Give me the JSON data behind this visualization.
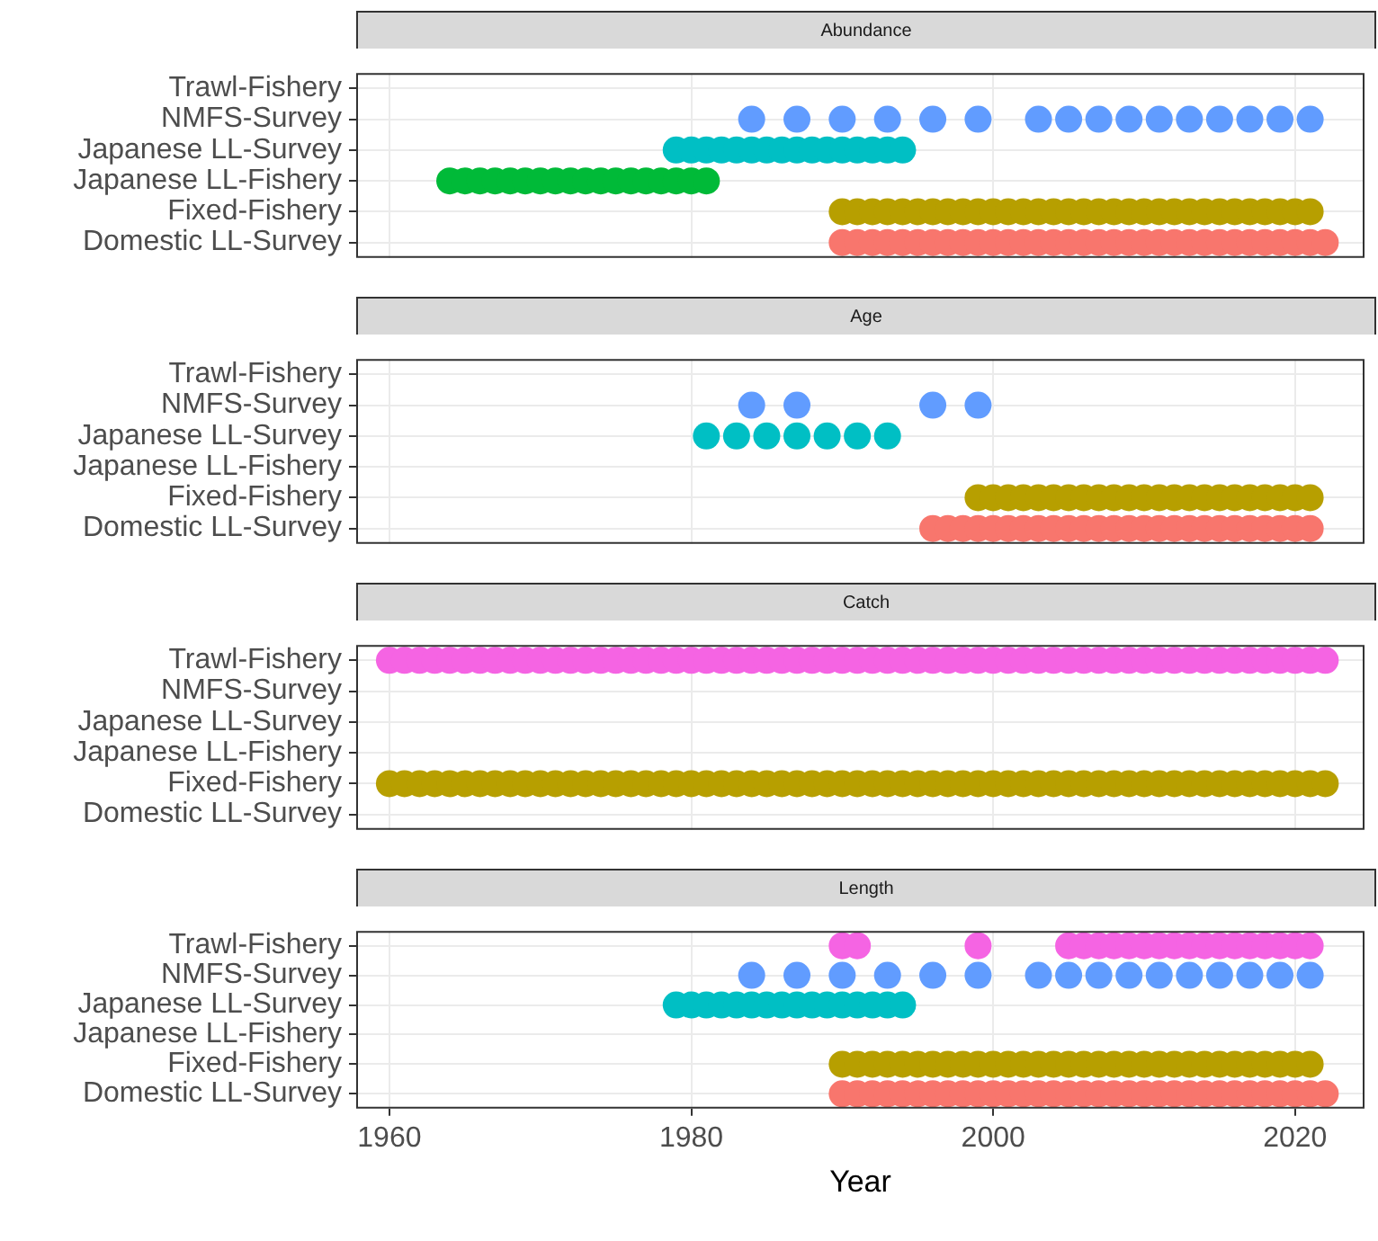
{
  "chart_data": [
    {
      "type": "scatter",
      "orientation": "horizontal",
      "title": "Abundance",
      "categories": [
        "Trawl-Fishery",
        "NMFS-Survey",
        "Japanese LL-Survey",
        "Japanese LL-Fishery",
        "Fixed-Fishery",
        "Domestic LL-Survey"
      ],
      "xlim": [
        1957.8,
        2024.6
      ],
      "xticks": [
        1960,
        1980,
        2000,
        2020
      ],
      "tick_labels": "y",
      "grid": true,
      "marker": "circle",
      "series": [
        {
          "color": "#619cff",
          "values": [
            1984,
            1987,
            1990,
            1993,
            1996,
            1999,
            2003,
            2005,
            2007,
            2009,
            2011,
            2013,
            2015,
            2017,
            2019,
            2021
          ],
          "x": [
            "NMFS-Survey",
            "NMFS-Survey",
            "NMFS-Survey",
            "NMFS-Survey",
            "NMFS-Survey",
            "NMFS-Survey",
            "NMFS-Survey",
            "NMFS-Survey",
            "NMFS-Survey",
            "NMFS-Survey",
            "NMFS-Survey",
            "NMFS-Survey",
            "NMFS-Survey",
            "NMFS-Survey",
            "NMFS-Survey",
            "NMFS-Survey"
          ]
        },
        {
          "color": "#00bfc4",
          "values": [
            1979,
            1980,
            1981,
            1982,
            1983,
            1984,
            1985,
            1986,
            1987,
            1988,
            1989,
            1990,
            1991,
            1992,
            1993,
            1994
          ],
          "x": [
            "Japanese LL-Survey",
            "Japanese LL-Survey",
            "Japanese LL-Survey",
            "Japanese LL-Survey",
            "Japanese LL-Survey",
            "Japanese LL-Survey",
            "Japanese LL-Survey",
            "Japanese LL-Survey",
            "Japanese LL-Survey",
            "Japanese LL-Survey",
            "Japanese LL-Survey",
            "Japanese LL-Survey",
            "Japanese LL-Survey",
            "Japanese LL-Survey",
            "Japanese LL-Survey",
            "Japanese LL-Survey"
          ]
        },
        {
          "color": "#00ba38",
          "values": [
            1964,
            1965,
            1966,
            1967,
            1968,
            1969,
            1970,
            1971,
            1972,
            1973,
            1974,
            1975,
            1976,
            1977,
            1978,
            1979,
            1980,
            1981
          ],
          "x": [
            "Japanese LL-Fishery",
            "Japanese LL-Fishery",
            "Japanese LL-Fishery",
            "Japanese LL-Fishery",
            "Japanese LL-Fishery",
            "Japanese LL-Fishery",
            "Japanese LL-Fishery",
            "Japanese LL-Fishery",
            "Japanese LL-Fishery",
            "Japanese LL-Fishery",
            "Japanese LL-Fishery",
            "Japanese LL-Fishery",
            "Japanese LL-Fishery",
            "Japanese LL-Fishery",
            "Japanese LL-Fishery",
            "Japanese LL-Fishery",
            "Japanese LL-Fishery",
            "Japanese LL-Fishery"
          ]
        },
        {
          "color": "#b79f00",
          "values": [
            1990,
            1991,
            1992,
            1993,
            1994,
            1995,
            1996,
            1997,
            1998,
            1999,
            2000,
            2001,
            2002,
            2003,
            2004,
            2005,
            2006,
            2007,
            2008,
            2009,
            2010,
            2011,
            2012,
            2013,
            2014,
            2015,
            2016,
            2017,
            2018,
            2019,
            2020,
            2021
          ],
          "x": [
            "Fixed-Fishery",
            "Fixed-Fishery",
            "Fixed-Fishery",
            "Fixed-Fishery",
            "Fixed-Fishery",
            "Fixed-Fishery",
            "Fixed-Fishery",
            "Fixed-Fishery",
            "Fixed-Fishery",
            "Fixed-Fishery",
            "Fixed-Fishery",
            "Fixed-Fishery",
            "Fixed-Fishery",
            "Fixed-Fishery",
            "Fixed-Fishery",
            "Fixed-Fishery",
            "Fixed-Fishery",
            "Fixed-Fishery",
            "Fixed-Fishery",
            "Fixed-Fishery",
            "Fixed-Fishery",
            "Fixed-Fishery",
            "Fixed-Fishery",
            "Fixed-Fishery",
            "Fixed-Fishery",
            "Fixed-Fishery",
            "Fixed-Fishery",
            "Fixed-Fishery",
            "Fixed-Fishery",
            "Fixed-Fishery",
            "Fixed-Fishery",
            "Fixed-Fishery"
          ]
        },
        {
          "color": "#f8766d",
          "values": [
            1990,
            1991,
            1992,
            1993,
            1994,
            1995,
            1996,
            1997,
            1998,
            1999,
            2000,
            2001,
            2002,
            2003,
            2004,
            2005,
            2006,
            2007,
            2008,
            2009,
            2010,
            2011,
            2012,
            2013,
            2014,
            2015,
            2016,
            2017,
            2018,
            2019,
            2020,
            2021,
            2022
          ],
          "x": [
            "Domestic LL-Survey",
            "Domestic LL-Survey",
            "Domestic LL-Survey",
            "Domestic LL-Survey",
            "Domestic LL-Survey",
            "Domestic LL-Survey",
            "Domestic LL-Survey",
            "Domestic LL-Survey",
            "Domestic LL-Survey",
            "Domestic LL-Survey",
            "Domestic LL-Survey",
            "Domestic LL-Survey",
            "Domestic LL-Survey",
            "Domestic LL-Survey",
            "Domestic LL-Survey",
            "Domestic LL-Survey",
            "Domestic LL-Survey",
            "Domestic LL-Survey",
            "Domestic LL-Survey",
            "Domestic LL-Survey",
            "Domestic LL-Survey",
            "Domestic LL-Survey",
            "Domestic LL-Survey",
            "Domestic LL-Survey",
            "Domestic LL-Survey",
            "Domestic LL-Survey",
            "Domestic LL-Survey",
            "Domestic LL-Survey",
            "Domestic LL-Survey",
            "Domestic LL-Survey",
            "Domestic LL-Survey",
            "Domestic LL-Survey",
            "Domestic LL-Survey"
          ]
        }
      ]
    },
    {
      "type": "scatter",
      "orientation": "horizontal",
      "title": "Age",
      "categories": [
        "Trawl-Fishery",
        "NMFS-Survey",
        "Japanese LL-Survey",
        "Japanese LL-Fishery",
        "Fixed-Fishery",
        "Domestic LL-Survey"
      ],
      "xlim": [
        1957.8,
        2024.6
      ],
      "xticks": [
        1960,
        1980,
        2000,
        2020
      ],
      "tick_labels": "y",
      "grid": true,
      "marker": "circle",
      "series": [
        {
          "color": "#619cff",
          "values": [
            1984,
            1987,
            1996,
            1999
          ],
          "x": [
            "NMFS-Survey",
            "NMFS-Survey",
            "NMFS-Survey",
            "NMFS-Survey"
          ]
        },
        {
          "color": "#00bfc4",
          "values": [
            1981,
            1983,
            1985,
            1987,
            1989,
            1991,
            1993
          ],
          "x": [
            "Japanese LL-Survey",
            "Japanese LL-Survey",
            "Japanese LL-Survey",
            "Japanese LL-Survey",
            "Japanese LL-Survey",
            "Japanese LL-Survey",
            "Japanese LL-Survey"
          ]
        },
        {
          "color": "#b79f00",
          "values": [
            1999,
            2000,
            2001,
            2002,
            2003,
            2004,
            2005,
            2006,
            2007,
            2008,
            2009,
            2010,
            2011,
            2012,
            2013,
            2014,
            2015,
            2016,
            2017,
            2018,
            2019,
            2020,
            2021
          ],
          "x": [
            "Fixed-Fishery",
            "Fixed-Fishery",
            "Fixed-Fishery",
            "Fixed-Fishery",
            "Fixed-Fishery",
            "Fixed-Fishery",
            "Fixed-Fishery",
            "Fixed-Fishery",
            "Fixed-Fishery",
            "Fixed-Fishery",
            "Fixed-Fishery",
            "Fixed-Fishery",
            "Fixed-Fishery",
            "Fixed-Fishery",
            "Fixed-Fishery",
            "Fixed-Fishery",
            "Fixed-Fishery",
            "Fixed-Fishery",
            "Fixed-Fishery",
            "Fixed-Fishery",
            "Fixed-Fishery",
            "Fixed-Fishery",
            "Fixed-Fishery"
          ]
        },
        {
          "color": "#f8766d",
          "values": [
            1996,
            1997,
            1998,
            1999,
            2000,
            2001,
            2002,
            2003,
            2004,
            2005,
            2006,
            2007,
            2008,
            2009,
            2010,
            2011,
            2012,
            2013,
            2014,
            2015,
            2016,
            2017,
            2018,
            2019,
            2020,
            2021
          ],
          "x": [
            "Domestic LL-Survey",
            "Domestic LL-Survey",
            "Domestic LL-Survey",
            "Domestic LL-Survey",
            "Domestic LL-Survey",
            "Domestic LL-Survey",
            "Domestic LL-Survey",
            "Domestic LL-Survey",
            "Domestic LL-Survey",
            "Domestic LL-Survey",
            "Domestic LL-Survey",
            "Domestic LL-Survey",
            "Domestic LL-Survey",
            "Domestic LL-Survey",
            "Domestic LL-Survey",
            "Domestic LL-Survey",
            "Domestic LL-Survey",
            "Domestic LL-Survey",
            "Domestic LL-Survey",
            "Domestic LL-Survey",
            "Domestic LL-Survey",
            "Domestic LL-Survey",
            "Domestic LL-Survey",
            "Domestic LL-Survey",
            "Domestic LL-Survey",
            "Domestic LL-Survey"
          ]
        }
      ]
    },
    {
      "type": "scatter",
      "orientation": "horizontal",
      "title": "Catch",
      "categories": [
        "Trawl-Fishery",
        "NMFS-Survey",
        "Japanese LL-Survey",
        "Japanese LL-Fishery",
        "Fixed-Fishery",
        "Domestic LL-Survey"
      ],
      "xlim": [
        1957.8,
        2024.6
      ],
      "xticks": [
        1960,
        1980,
        2000,
        2020
      ],
      "tick_labels": "y",
      "grid": true,
      "marker": "circle",
      "series": [
        {
          "color": "#f564e3",
          "values": [
            1960,
            1961,
            1962,
            1963,
            1964,
            1965,
            1966,
            1967,
            1968,
            1969,
            1970,
            1971,
            1972,
            1973,
            1974,
            1975,
            1976,
            1977,
            1978,
            1979,
            1980,
            1981,
            1982,
            1983,
            1984,
            1985,
            1986,
            1987,
            1988,
            1989,
            1990,
            1991,
            1992,
            1993,
            1994,
            1995,
            1996,
            1997,
            1998,
            1999,
            2000,
            2001,
            2002,
            2003,
            2004,
            2005,
            2006,
            2007,
            2008,
            2009,
            2010,
            2011,
            2012,
            2013,
            2014,
            2015,
            2016,
            2017,
            2018,
            2019,
            2020,
            2021,
            2022
          ],
          "x": [
            "Trawl-Fishery",
            "Trawl-Fishery",
            "Trawl-Fishery",
            "Trawl-Fishery",
            "Trawl-Fishery",
            "Trawl-Fishery",
            "Trawl-Fishery",
            "Trawl-Fishery",
            "Trawl-Fishery",
            "Trawl-Fishery",
            "Trawl-Fishery",
            "Trawl-Fishery",
            "Trawl-Fishery",
            "Trawl-Fishery",
            "Trawl-Fishery",
            "Trawl-Fishery",
            "Trawl-Fishery",
            "Trawl-Fishery",
            "Trawl-Fishery",
            "Trawl-Fishery",
            "Trawl-Fishery",
            "Trawl-Fishery",
            "Trawl-Fishery",
            "Trawl-Fishery",
            "Trawl-Fishery",
            "Trawl-Fishery",
            "Trawl-Fishery",
            "Trawl-Fishery",
            "Trawl-Fishery",
            "Trawl-Fishery",
            "Trawl-Fishery",
            "Trawl-Fishery",
            "Trawl-Fishery",
            "Trawl-Fishery",
            "Trawl-Fishery",
            "Trawl-Fishery",
            "Trawl-Fishery",
            "Trawl-Fishery",
            "Trawl-Fishery",
            "Trawl-Fishery",
            "Trawl-Fishery",
            "Trawl-Fishery",
            "Trawl-Fishery",
            "Trawl-Fishery",
            "Trawl-Fishery",
            "Trawl-Fishery",
            "Trawl-Fishery",
            "Trawl-Fishery",
            "Trawl-Fishery",
            "Trawl-Fishery",
            "Trawl-Fishery",
            "Trawl-Fishery",
            "Trawl-Fishery",
            "Trawl-Fishery",
            "Trawl-Fishery",
            "Trawl-Fishery",
            "Trawl-Fishery",
            "Trawl-Fishery",
            "Trawl-Fishery",
            "Trawl-Fishery",
            "Trawl-Fishery",
            "Trawl-Fishery",
            "Trawl-Fishery"
          ]
        },
        {
          "color": "#b79f00",
          "values": [
            1960,
            1961,
            1962,
            1963,
            1964,
            1965,
            1966,
            1967,
            1968,
            1969,
            1970,
            1971,
            1972,
            1973,
            1974,
            1975,
            1976,
            1977,
            1978,
            1979,
            1980,
            1981,
            1982,
            1983,
            1984,
            1985,
            1986,
            1987,
            1988,
            1989,
            1990,
            1991,
            1992,
            1993,
            1994,
            1995,
            1996,
            1997,
            1998,
            1999,
            2000,
            2001,
            2002,
            2003,
            2004,
            2005,
            2006,
            2007,
            2008,
            2009,
            2010,
            2011,
            2012,
            2013,
            2014,
            2015,
            2016,
            2017,
            2018,
            2019,
            2020,
            2021,
            2022
          ],
          "x": [
            "Fixed-Fishery",
            "Fixed-Fishery",
            "Fixed-Fishery",
            "Fixed-Fishery",
            "Fixed-Fishery",
            "Fixed-Fishery",
            "Fixed-Fishery",
            "Fixed-Fishery",
            "Fixed-Fishery",
            "Fixed-Fishery",
            "Fixed-Fishery",
            "Fixed-Fishery",
            "Fixed-Fishery",
            "Fixed-Fishery",
            "Fixed-Fishery",
            "Fixed-Fishery",
            "Fixed-Fishery",
            "Fixed-Fishery",
            "Fixed-Fishery",
            "Fixed-Fishery",
            "Fixed-Fishery",
            "Fixed-Fishery",
            "Fixed-Fishery",
            "Fixed-Fishery",
            "Fixed-Fishery",
            "Fixed-Fishery",
            "Fixed-Fishery",
            "Fixed-Fishery",
            "Fixed-Fishery",
            "Fixed-Fishery",
            "Fixed-Fishery",
            "Fixed-Fishery",
            "Fixed-Fishery",
            "Fixed-Fishery",
            "Fixed-Fishery",
            "Fixed-Fishery",
            "Fixed-Fishery",
            "Fixed-Fishery",
            "Fixed-Fishery",
            "Fixed-Fishery",
            "Fixed-Fishery",
            "Fixed-Fishery",
            "Fixed-Fishery",
            "Fixed-Fishery",
            "Fixed-Fishery",
            "Fixed-Fishery",
            "Fixed-Fishery",
            "Fixed-Fishery",
            "Fixed-Fishery",
            "Fixed-Fishery",
            "Fixed-Fishery",
            "Fixed-Fishery",
            "Fixed-Fishery",
            "Fixed-Fishery",
            "Fixed-Fishery",
            "Fixed-Fishery",
            "Fixed-Fishery",
            "Fixed-Fishery",
            "Fixed-Fishery",
            "Fixed-Fishery",
            "Fixed-Fishery",
            "Fixed-Fishery",
            "Fixed-Fishery"
          ]
        }
      ]
    },
    {
      "type": "scatter",
      "orientation": "horizontal",
      "title": "Length",
      "categories": [
        "Trawl-Fishery",
        "NMFS-Survey",
        "Japanese LL-Survey",
        "Japanese LL-Fishery",
        "Fixed-Fishery",
        "Domestic LL-Survey"
      ],
      "xlim": [
        1957.8,
        2024.6
      ],
      "xticks": [
        1960,
        1980,
        2000,
        2020
      ],
      "xlabel": "Year",
      "grid": true,
      "marker": "circle",
      "series": [
        {
          "color": "#f564e3",
          "values": [
            1990,
            1991,
            1999,
            2005,
            2006,
            2007,
            2008,
            2009,
            2010,
            2011,
            2012,
            2013,
            2014,
            2015,
            2016,
            2017,
            2018,
            2019,
            2020,
            2021
          ],
          "x": [
            "Trawl-Fishery",
            "Trawl-Fishery",
            "Trawl-Fishery",
            "Trawl-Fishery",
            "Trawl-Fishery",
            "Trawl-Fishery",
            "Trawl-Fishery",
            "Trawl-Fishery",
            "Trawl-Fishery",
            "Trawl-Fishery",
            "Trawl-Fishery",
            "Trawl-Fishery",
            "Trawl-Fishery",
            "Trawl-Fishery",
            "Trawl-Fishery",
            "Trawl-Fishery",
            "Trawl-Fishery",
            "Trawl-Fishery",
            "Trawl-Fishery",
            "Trawl-Fishery"
          ]
        },
        {
          "color": "#619cff",
          "values": [
            1984,
            1987,
            1990,
            1993,
            1996,
            1999,
            2003,
            2005,
            2007,
            2009,
            2011,
            2013,
            2015,
            2017,
            2019,
            2021
          ],
          "x": [
            "NMFS-Survey",
            "NMFS-Survey",
            "NMFS-Survey",
            "NMFS-Survey",
            "NMFS-Survey",
            "NMFS-Survey",
            "NMFS-Survey",
            "NMFS-Survey",
            "NMFS-Survey",
            "NMFS-Survey",
            "NMFS-Survey",
            "NMFS-Survey",
            "NMFS-Survey",
            "NMFS-Survey",
            "NMFS-Survey",
            "NMFS-Survey"
          ]
        },
        {
          "color": "#00bfc4",
          "values": [
            1979,
            1980,
            1981,
            1982,
            1983,
            1984,
            1985,
            1986,
            1987,
            1988,
            1989,
            1990,
            1991,
            1992,
            1993,
            1994
          ],
          "x": [
            "Japanese LL-Survey",
            "Japanese LL-Survey",
            "Japanese LL-Survey",
            "Japanese LL-Survey",
            "Japanese LL-Survey",
            "Japanese LL-Survey",
            "Japanese LL-Survey",
            "Japanese LL-Survey",
            "Japanese LL-Survey",
            "Japanese LL-Survey",
            "Japanese LL-Survey",
            "Japanese LL-Survey",
            "Japanese LL-Survey",
            "Japanese LL-Survey",
            "Japanese LL-Survey",
            "Japanese LL-Survey"
          ]
        },
        {
          "color": "#b79f00",
          "values": [
            1990,
            1991,
            1992,
            1993,
            1994,
            1995,
            1996,
            1997,
            1998,
            1999,
            2000,
            2001,
            2002,
            2003,
            2004,
            2005,
            2006,
            2007,
            2008,
            2009,
            2010,
            2011,
            2012,
            2013,
            2014,
            2015,
            2016,
            2017,
            2018,
            2019,
            2020,
            2021
          ],
          "x": [
            "Fixed-Fishery",
            "Fixed-Fishery",
            "Fixed-Fishery",
            "Fixed-Fishery",
            "Fixed-Fishery",
            "Fixed-Fishery",
            "Fixed-Fishery",
            "Fixed-Fishery",
            "Fixed-Fishery",
            "Fixed-Fishery",
            "Fixed-Fishery",
            "Fixed-Fishery",
            "Fixed-Fishery",
            "Fixed-Fishery",
            "Fixed-Fishery",
            "Fixed-Fishery",
            "Fixed-Fishery",
            "Fixed-Fishery",
            "Fixed-Fishery",
            "Fixed-Fishery",
            "Fixed-Fishery",
            "Fixed-Fishery",
            "Fixed-Fishery",
            "Fixed-Fishery",
            "Fixed-Fishery",
            "Fixed-Fishery",
            "Fixed-Fishery",
            "Fixed-Fishery",
            "Fixed-Fishery",
            "Fixed-Fishery",
            "Fixed-Fishery",
            "Fixed-Fishery"
          ]
        },
        {
          "color": "#f8766d",
          "values": [
            1990,
            1991,
            1992,
            1993,
            1994,
            1995,
            1996,
            1997,
            1998,
            1999,
            2000,
            2001,
            2002,
            2003,
            2004,
            2005,
            2006,
            2007,
            2008,
            2009,
            2010,
            2011,
            2012,
            2013,
            2014,
            2015,
            2016,
            2017,
            2018,
            2019,
            2020,
            2021,
            2022
          ],
          "x": [
            "Domestic LL-Survey",
            "Domestic LL-Survey",
            "Domestic LL-Survey",
            "Domestic LL-Survey",
            "Domestic LL-Survey",
            "Domestic LL-Survey",
            "Domestic LL-Survey",
            "Domestic LL-Survey",
            "Domestic LL-Survey",
            "Domestic LL-Survey",
            "Domestic LL-Survey",
            "Domestic LL-Survey",
            "Domestic LL-Survey",
            "Domestic LL-Survey",
            "Domestic LL-Survey",
            "Domestic LL-Survey",
            "Domestic LL-Survey",
            "Domestic LL-Survey",
            "Domestic LL-Survey",
            "Domestic LL-Survey",
            "Domestic LL-Survey",
            "Domestic LL-Survey",
            "Domestic LL-Survey",
            "Domestic LL-Survey",
            "Domestic LL-Survey",
            "Domestic LL-Survey",
            "Domestic LL-Survey",
            "Domestic LL-Survey",
            "Domestic LL-Survey",
            "Domestic LL-Survey",
            "Domestic LL-Survey",
            "Domestic LL-Survey",
            "Domestic LL-Survey"
          ]
        }
      ]
    }
  ]
}
